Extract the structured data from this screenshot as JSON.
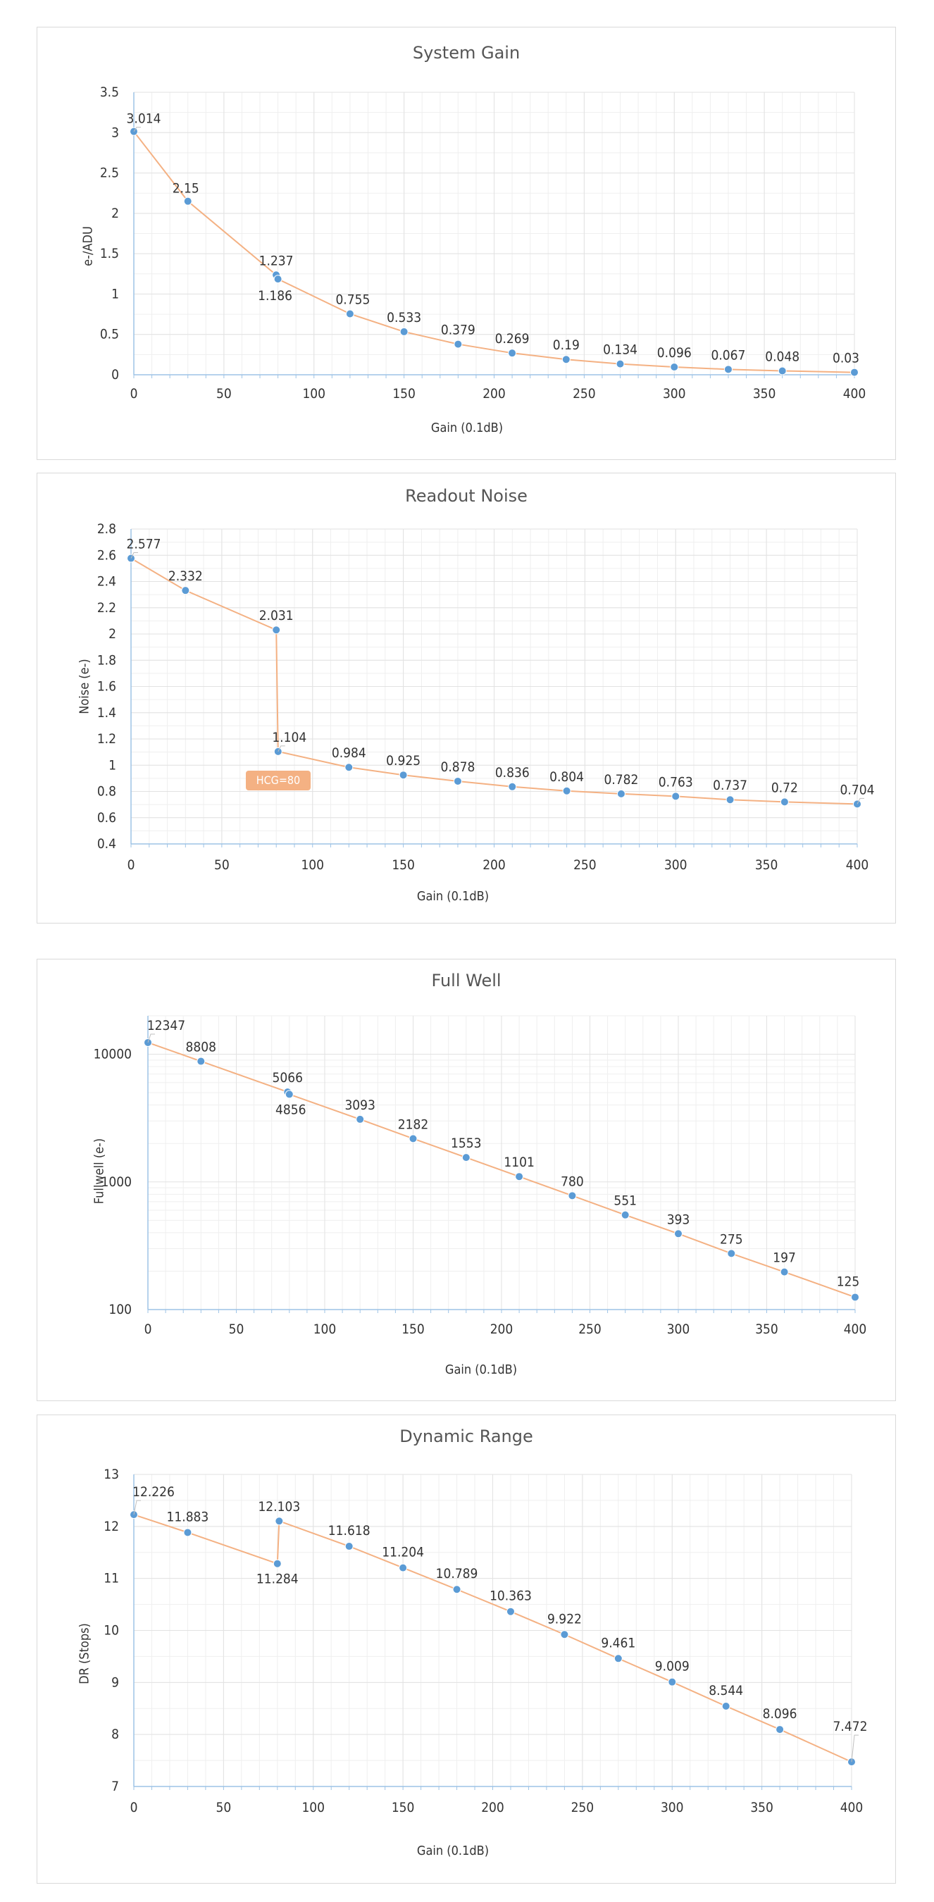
{
  "page": {
    "background": "#ffffff"
  },
  "colors": {
    "line": "#f4b183",
    "marker": "#5b9bd5",
    "axis": "#9dc3e6",
    "grid": "#e2e2e2",
    "text": "#333333"
  },
  "chart_data": [
    {
      "type": "line",
      "title": "System Gain",
      "xlabel": "Gain (0.1dB)",
      "ylabel": "e-/ADU",
      "xlim": [
        0,
        400
      ],
      "ylim": [
        0,
        3.5
      ],
      "xticks": [
        0,
        50,
        100,
        150,
        200,
        250,
        300,
        350,
        400
      ],
      "yticks": [
        0,
        0.5,
        1,
        1.5,
        2,
        2.5,
        3,
        3.5
      ],
      "ytick_labels": [
        "0",
        "0.5",
        "1",
        "1.5",
        "2",
        "2.5",
        "3",
        "3.5"
      ],
      "xtick_labels": [
        "0",
        "50",
        "100",
        "150",
        "200",
        "250",
        "300",
        "350",
        "400"
      ],
      "grid": true,
      "log_y": false,
      "series": [
        {
          "x": [
            0,
            30,
            79,
            80,
            120,
            150,
            180,
            210,
            240,
            270,
            300,
            330,
            360,
            400
          ],
          "y": [
            3.014,
            2.15,
            1.237,
            1.186,
            0.755,
            0.533,
            0.379,
            0.269,
            0.19,
            0.134,
            0.096,
            0.067,
            0.048,
            0.03
          ],
          "labels": [
            "3.014",
            "2.15",
            "1.237",
            "1.186",
            "0.755",
            "0.533",
            "0.379",
            "0.269",
            "0.19",
            "0.134",
            "0.096",
            "0.067",
            "0.048",
            "0.03"
          ]
        }
      ]
    },
    {
      "type": "line",
      "title": "Readout Noise",
      "xlabel": "Gain (0.1dB)",
      "ylabel": "Noise (e-)",
      "xlim": [
        0,
        400
      ],
      "ylim": [
        0.4,
        2.8
      ],
      "xticks": [
        0,
        50,
        100,
        150,
        200,
        250,
        300,
        350,
        400
      ],
      "yticks": [
        0.4,
        0.6,
        0.8,
        1.0,
        1.2,
        1.4,
        1.6,
        1.8,
        2.0,
        2.2,
        2.4,
        2.6,
        2.8
      ],
      "ytick_labels": [
        "0.4",
        "0.6",
        "0.8",
        "1",
        "1.2",
        "1.4",
        "1.6",
        "1.8",
        "2",
        "2.2",
        "2.4",
        "2.6",
        "2.8"
      ],
      "xtick_labels": [
        "0",
        "50",
        "100",
        "150",
        "200",
        "250",
        "300",
        "350",
        "400"
      ],
      "grid": true,
      "log_y": false,
      "annotation": "HCG=80",
      "series": [
        {
          "x": [
            0,
            30,
            80,
            81,
            120,
            150,
            180,
            210,
            240,
            270,
            300,
            330,
            360,
            400
          ],
          "y": [
            2.577,
            2.332,
            2.031,
            1.104,
            0.984,
            0.925,
            0.878,
            0.836,
            0.804,
            0.782,
            0.763,
            0.737,
            0.72,
            0.704
          ],
          "labels": [
            "2.577",
            "2.332",
            "2.031",
            "1.104",
            "0.984",
            "0.925",
            "0.878",
            "0.836",
            "0.804",
            "0.782",
            "0.763",
            "0.737",
            "0.72",
            "0.704"
          ]
        }
      ]
    },
    {
      "type": "line",
      "title": "Full Well",
      "xlabel": "Gain (0.1dB)",
      "ylabel": "Fullwell (e-)",
      "xlim": [
        0,
        400
      ],
      "ylim": [
        100,
        20000
      ],
      "xticks": [
        0,
        50,
        100,
        150,
        200,
        250,
        300,
        350,
        400
      ],
      "yticks": [
        100,
        1000,
        10000
      ],
      "ytick_labels": [
        "100",
        "1000",
        "10000"
      ],
      "xtick_labels": [
        "0",
        "50",
        "100",
        "150",
        "200",
        "250",
        "300",
        "350",
        "400"
      ],
      "grid": true,
      "log_y": true,
      "series": [
        {
          "x": [
            0,
            30,
            79,
            80,
            120,
            150,
            180,
            210,
            240,
            270,
            300,
            330,
            360,
            400
          ],
          "y": [
            12347,
            8808,
            5066,
            4856,
            3093,
            2182,
            1553,
            1101,
            780,
            551,
            393,
            275,
            197,
            125
          ],
          "labels": [
            "12347",
            "8808",
            "5066",
            "4856",
            "3093",
            "2182",
            "1553",
            "1101",
            "780",
            "551",
            "393",
            "275",
            "197",
            "125"
          ]
        }
      ]
    },
    {
      "type": "line",
      "title": "Dynamic Range",
      "xlabel": "Gain (0.1dB)",
      "ylabel": "DR (Stops)",
      "xlim": [
        0,
        400
      ],
      "ylim": [
        7,
        13
      ],
      "xticks": [
        0,
        50,
        100,
        150,
        200,
        250,
        300,
        350,
        400
      ],
      "yticks": [
        7,
        8,
        9,
        10,
        11,
        12,
        13
      ],
      "ytick_labels": [
        "7",
        "8",
        "9",
        "10",
        "11",
        "12",
        "13"
      ],
      "xtick_labels": [
        "0",
        "50",
        "100",
        "150",
        "200",
        "250",
        "300",
        "350",
        "400"
      ],
      "grid": true,
      "log_y": false,
      "series": [
        {
          "x": [
            0,
            30,
            80,
            81,
            120,
            150,
            180,
            210,
            240,
            270,
            300,
            330,
            360,
            400
          ],
          "y": [
            12.226,
            11.883,
            11.284,
            12.103,
            11.618,
            11.204,
            10.789,
            10.363,
            9.922,
            9.461,
            9.009,
            8.544,
            8.096,
            7.472
          ],
          "labels": [
            "12.226",
            "11.883",
            "11.284",
            "12.103",
            "11.618",
            "11.204",
            "10.789",
            "10.363",
            "9.922",
            "9.461",
            "9.009",
            "8.544",
            "8.096",
            "7.472"
          ]
        }
      ]
    }
  ]
}
